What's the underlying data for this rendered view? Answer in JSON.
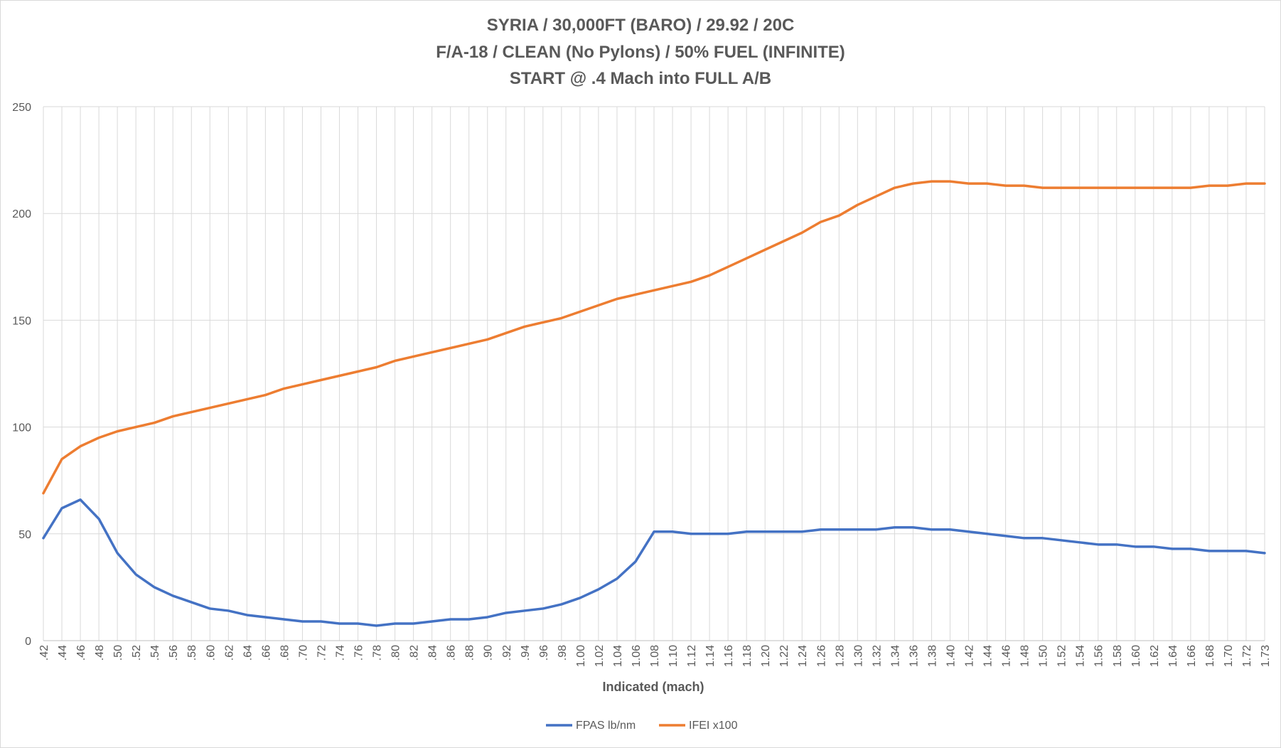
{
  "chart_data": {
    "type": "line",
    "title_lines": [
      "SYRIA / 30,000FT (BARO) / 29.92 / 20C",
      "F/A-18 / CLEAN (No Pylons) / 50% FUEL (INFINITE)",
      "START @ .4 Mach into FULL A/B"
    ],
    "xlabel": "Indicated (mach)",
    "ylabel": "",
    "ylim": [
      0,
      250
    ],
    "yticks": [
      "0",
      "50",
      "100",
      "150",
      "200",
      "250"
    ],
    "categories": [
      ".42",
      ".44",
      ".46",
      ".48",
      ".50",
      ".52",
      ".54",
      ".56",
      ".58",
      ".60",
      ".62",
      ".64",
      ".66",
      ".68",
      ".70",
      ".72",
      ".74",
      ".76",
      ".78",
      ".80",
      ".82",
      ".84",
      ".86",
      ".88",
      ".90",
      ".92",
      ".94",
      ".96",
      ".98",
      "1.00",
      "1.02",
      "1.04",
      "1.06",
      "1.08",
      "1.10",
      "1.12",
      "1.14",
      "1.16",
      "1.18",
      "1.20",
      "1.22",
      "1.24",
      "1.26",
      "1.28",
      "1.30",
      "1.32",
      "1.34",
      "1.36",
      "1.38",
      "1.40",
      "1.42",
      "1.44",
      "1.46",
      "1.48",
      "1.50",
      "1.52",
      "1.54",
      "1.56",
      "1.58",
      "1.60",
      "1.62",
      "1.64",
      "1.66",
      "1.68",
      "1.70",
      "1.72",
      "1.73"
    ],
    "grid": true,
    "legend_position": "bottom",
    "series": [
      {
        "name": "FPAS lb/nm",
        "color": "#4472c4",
        "values": [
          48,
          62,
          66,
          57,
          41,
          31,
          25,
          21,
          18,
          15,
          14,
          12,
          11,
          10,
          9,
          9,
          8,
          8,
          7,
          8,
          8,
          9,
          10,
          10,
          11,
          13,
          14,
          15,
          17,
          20,
          24,
          29,
          37,
          51,
          51,
          50,
          50,
          50,
          51,
          51,
          51,
          51,
          52,
          52,
          52,
          52,
          53,
          53,
          52,
          52,
          51,
          50,
          49,
          48,
          48,
          47,
          46,
          45,
          45,
          44,
          44,
          43,
          43,
          42,
          42,
          42,
          41
        ]
      },
      {
        "name": "IFEI x100",
        "color": "#ed7d31",
        "values": [
          69,
          85,
          91,
          95,
          98,
          100,
          102,
          105,
          107,
          109,
          111,
          113,
          115,
          118,
          120,
          122,
          124,
          126,
          128,
          131,
          133,
          135,
          137,
          139,
          141,
          144,
          147,
          149,
          151,
          154,
          157,
          160,
          162,
          164,
          166,
          168,
          171,
          175,
          179,
          183,
          187,
          191,
          196,
          199,
          204,
          208,
          212,
          214,
          215,
          215,
          214,
          214,
          213,
          213,
          212,
          212,
          212,
          212,
          212,
          212,
          212,
          212,
          212,
          213,
          213,
          214,
          214
        ]
      }
    ]
  }
}
